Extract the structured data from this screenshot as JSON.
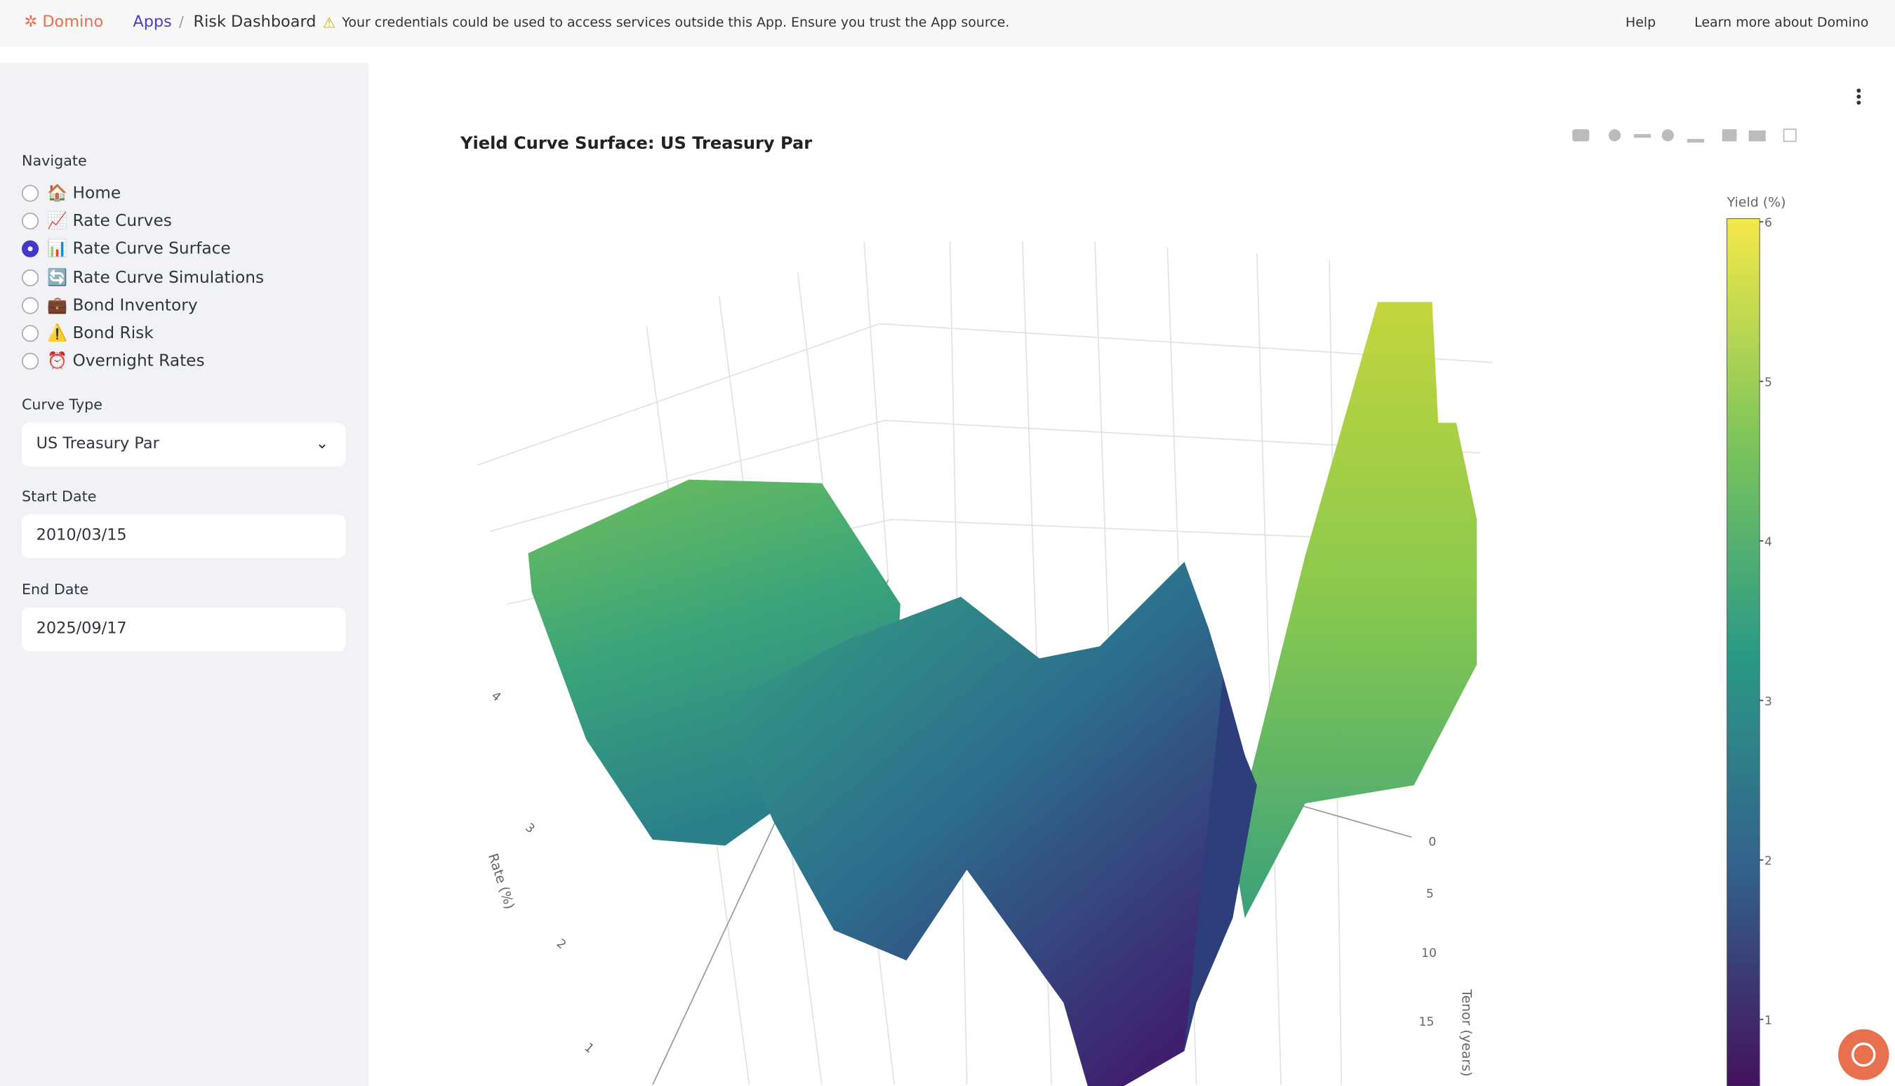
{
  "header": {
    "brand": "Domino",
    "breadcrumb": [
      "Apps",
      "Risk Dashboard"
    ],
    "warning": "Your credentials could be used to access services outside this App. Ensure you trust the App source.",
    "links": [
      "Help",
      "Learn more about Domino"
    ]
  },
  "sidebar": {
    "navigate_label": "Navigate",
    "nav_items": [
      "🏠 Home",
      "📈 Rate Curves",
      "📊 Rate Curve Surface",
      "🔄 Rate Curve Simulations",
      "💼 Bond Inventory",
      "⚠️ Bond Risk",
      "⏰ Overnight Rates"
    ],
    "selected": 2,
    "curve_type_label": "Curve Type",
    "curve_type": "US Treasury Par",
    "start_date_label": "Start Date",
    "start_date": "2010/03/15",
    "end_date_label": "End Date",
    "end_date": "2025/09/17"
  },
  "chart": {
    "title": "Yield Curve Surface: US Treasury Par",
    "colorbar_title": "Yield (%)",
    "colorbar_range": [
      0,
      6.02
    ],
    "colorbar_ticks": [
      1,
      2,
      3,
      4,
      5,
      6
    ],
    "rate_axis_title": "Rate (%)",
    "rate_ticks": [
      4,
      3,
      2,
      1
    ],
    "tenor_axis_title": "Tenor (years)",
    "tenor_ticks": [
      0,
      5,
      10,
      15
    ]
  }
}
